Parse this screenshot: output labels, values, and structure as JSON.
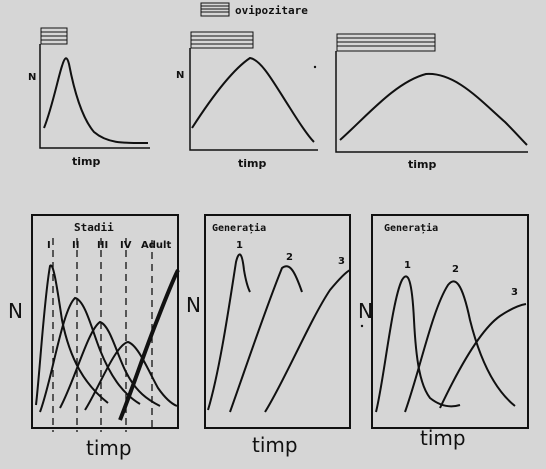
{
  "legend": {
    "label": "ovipozitare"
  },
  "top_panels": [
    {
      "y_label": "N",
      "x_label": "timp"
    },
    {
      "y_label": "N",
      "x_label": "timp"
    },
    {
      "x_label": "timp"
    }
  ],
  "bottom_panels": {
    "stages": {
      "title": "Stadii",
      "y_label": "N",
      "x_label": "timp",
      "stage_labels": [
        "I",
        "II",
        "III",
        "IV",
        "Adult"
      ]
    },
    "gen_a": {
      "title": "Generația",
      "x_label": "timp",
      "gen_labels": [
        "1",
        "2",
        "3"
      ]
    },
    "gen_b": {
      "title": "Generația",
      "y_label": "N",
      "x_label": "timp",
      "gen_labels": [
        "1",
        "2",
        "3"
      ]
    }
  },
  "colors": {
    "ink": "#111111",
    "paper": "#d6d6d6"
  }
}
